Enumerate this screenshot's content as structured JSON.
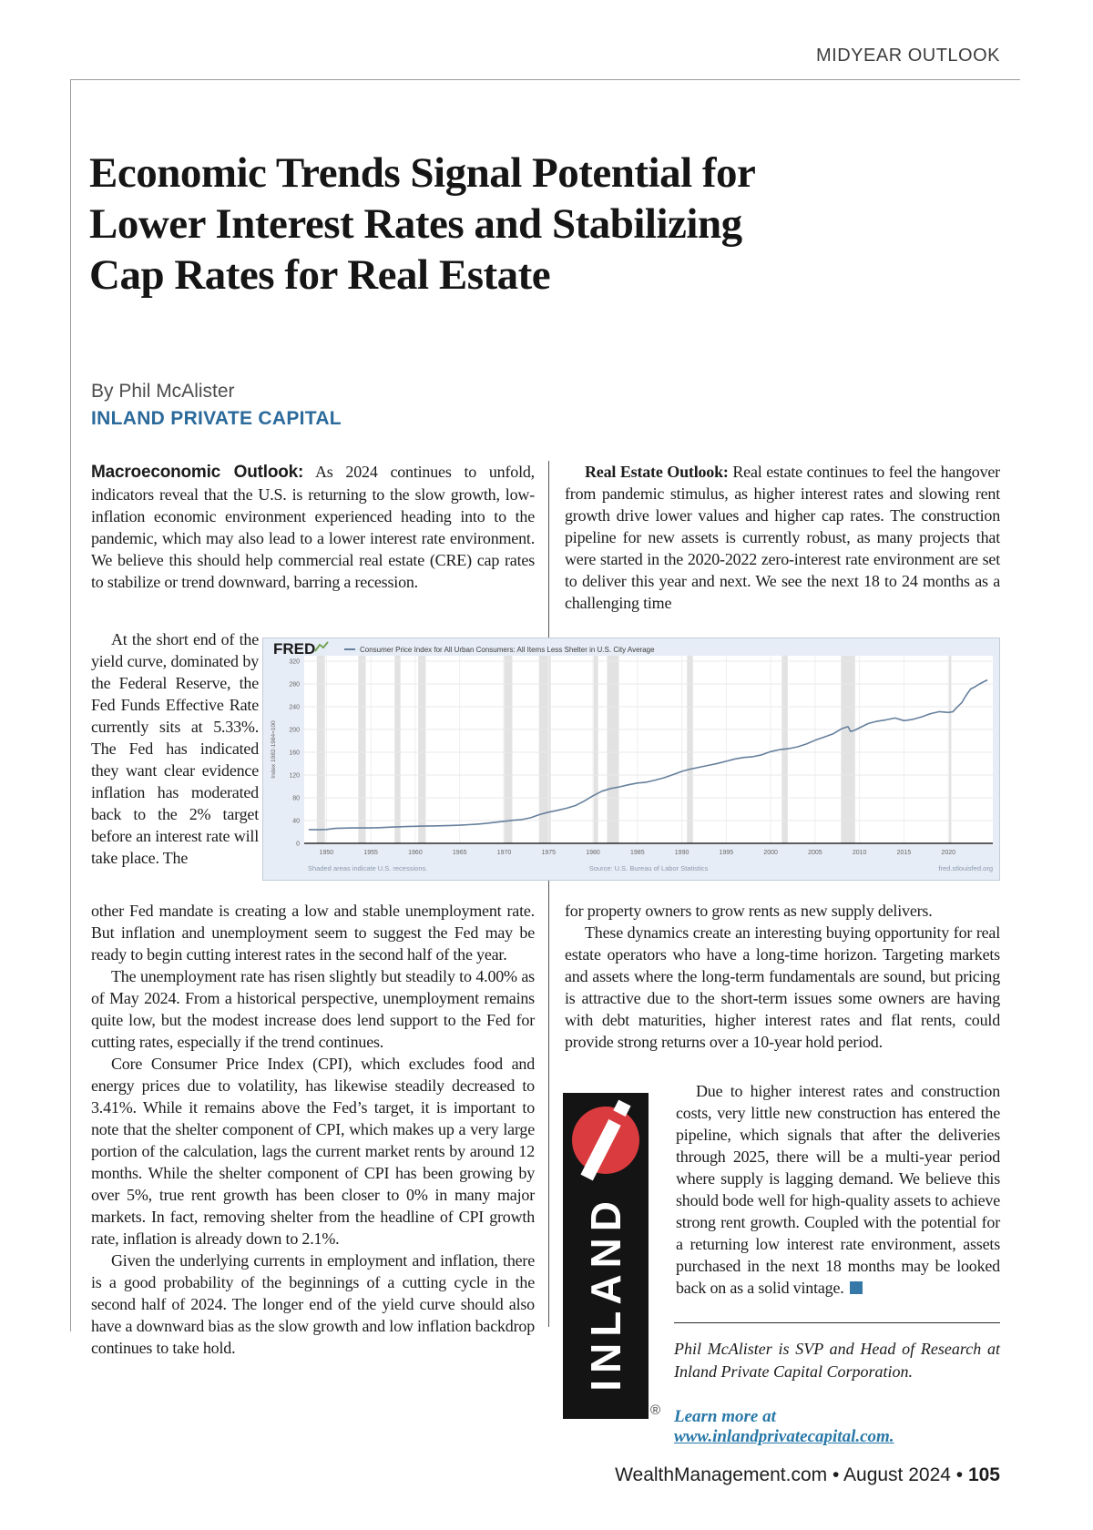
{
  "page": {
    "kicker": "MIDYEAR OUTLOOK",
    "title": "Economic Trends Signal Potential for\nLower Interest Rates and Stabilizing\nCap Rates for Real Estate",
    "byline": "By Phil McAlister",
    "brand": "INLAND PRIVATE CAPITAL",
    "footer": {
      "text": "WealthManagement.com • August 2024 • ",
      "page_number": "105"
    },
    "colors": {
      "brand_blue": "#2b6a9b",
      "link_blue": "#2878a8",
      "endmark": "#3679a8"
    }
  },
  "col1": {
    "p1_lead": "Macroeconomic Outlook:",
    "p1": " As 2024 continues to unfold, indicators reveal that the U.S. is returning to the slow growth, low-inflation economic environment experienced heading into to the pandemic, which may also lead to a lower interest rate environment. We believe this should help commercial real estate (CRE) cap rates to stabilize or trend downward, barring a recession.",
    "wrap": "At the short end of the yield curve, dominated by the Federal Reserve, the Fed Funds Effective Rate currently sits at 5.33%. The Fed has indicated they want clear evidence inflation has moderated back to the 2% target before an interest rate will take place. The",
    "p2": "other Fed mandate is creating a low and stable unemployment rate. But inflation and unemployment seem to suggest the Fed may be ready to begin cutting interest rates in the second half of the year.",
    "p3": "The unemployment rate has risen slightly but steadily to 4.00% as of May 2024. From a historical perspective, unemployment remains quite low, but the modest increase does lend support to the Fed for cutting rates, especially if the trend continues.",
    "p4": "Core Consumer Price Index (CPI), which excludes food and energy prices due to volatility, has likewise steadily decreased to 3.41%. While it remains above the Fed’s target, it is important to note that the shelter component of CPI, which makes up a very large portion of the calculation, lags the current market rents by around 12 months. While the shelter component of CPI has been growing by over 5%, true rent growth has been closer to 0% in many major markets. In fact, removing shelter from the headline of CPI growth rate, inflation is already down to 2.1%.",
    "p5": "Given the underlying currents in employment and inflation, there is a good probability of the beginnings of a cutting cycle in the second half of 2024. The longer end of the yield curve should also have a downward bias as the slow growth and low inflation backdrop continues to take hold."
  },
  "col2": {
    "p1_lead": "Real Estate Outlook:",
    "p1": " Real estate continues to feel the hangover from pandemic stimulus, as higher interest rates and slowing rent growth drive lower values and higher cap rates. The construction pipeline for new assets is currently robust, as many projects that were started in the 2020-2022 zero-interest rate environment are set to deliver this year and next. We see the next 18 to 24 months as a challenging time",
    "p2": "for property owners to grow rents as new supply delivers.",
    "p3": "These dynamics create an interesting buying opportunity for real estate operators who have a long-time horizon. Targeting markets and assets where the long-term fundamentals are sound, but pricing is attractive due to the short-term issues some owners are having with debt maturities, higher interest rates and flat rents, could provide strong returns over a 10-year hold period.",
    "p4": "Due to higher interest rates and construction costs, very little new construction has entered the pipeline, which signals that after the deliveries through 2025, there will be a multi-year period where supply is lagging demand. We believe this should bode well for high-quality assets to achieve strong rent growth. Coupled with the potential for a returning low interest rate environment, assets purchased in the next 18 months may be looked back on as a solid vintage.",
    "bio": "Phil McAlister is SVP and Head of Research at Inland Private Capital Corporation.",
    "learn_more_prefix": "Learn more at ",
    "learn_more_url": "www.inlandprivatecapital.com."
  },
  "logo": {
    "text": "INLAND",
    "registered": "®",
    "bg": "#141414",
    "red": "#da3b3e"
  },
  "chart_data": {
    "type": "line",
    "brand_label": "FRED",
    "legend": "Consumer Price Index for All Urban Consumers: All Items Less Shelter in U.S. City Average",
    "ylabel": "Index 1982-1984=100",
    "source_left": "Shaded areas indicate U.S. recessions.",
    "source_center": "Source: U.S. Bureau of Labor Statistics",
    "source_right": "fred.stlouisfed.org",
    "xlim": [
      1947.5,
      2025
    ],
    "ylim": [
      0,
      320
    ],
    "yticks": [
      0,
      40,
      80,
      120,
      160,
      200,
      240,
      280,
      320
    ],
    "xticks": [
      1950,
      1955,
      1960,
      1965,
      1970,
      1975,
      1980,
      1985,
      1990,
      1995,
      2000,
      2005,
      2010,
      2015,
      2020
    ],
    "recessions": [
      [
        1948.92,
        1949.83
      ],
      [
        1953.58,
        1954.42
      ],
      [
        1957.67,
        1958.33
      ],
      [
        1960.33,
        1961.17
      ],
      [
        1969.92,
        1970.92
      ],
      [
        1973.92,
        1975.25
      ],
      [
        1980.08,
        1980.58
      ],
      [
        1981.58,
        1982.92
      ],
      [
        1990.58,
        1991.25
      ],
      [
        2001.25,
        2001.92
      ],
      [
        2007.92,
        2009.5
      ],
      [
        2020.08,
        2020.33
      ]
    ],
    "series": [
      {
        "name": "Consumer Price Index for All Urban Consumers: All Items Less Shelter in U.S. City Average",
        "points": [
          [
            1948,
            24.2
          ],
          [
            1949,
            23.9
          ],
          [
            1950,
            24.3
          ],
          [
            1951,
            26.3
          ],
          [
            1952,
            26.8
          ],
          [
            1953,
            27.0
          ],
          [
            1954,
            27.1
          ],
          [
            1955,
            27.0
          ],
          [
            1956,
            27.5
          ],
          [
            1957,
            28.4
          ],
          [
            1958,
            29.0
          ],
          [
            1959,
            29.4
          ],
          [
            1960,
            29.9
          ],
          [
            1961,
            30.2
          ],
          [
            1962,
            30.5
          ],
          [
            1963,
            30.9
          ],
          [
            1964,
            31.3
          ],
          [
            1965,
            31.8
          ],
          [
            1966,
            32.8
          ],
          [
            1967,
            33.7
          ],
          [
            1968,
            35.1
          ],
          [
            1969,
            36.9
          ],
          [
            1970,
            38.8
          ],
          [
            1971,
            40.5
          ],
          [
            1972,
            41.8
          ],
          [
            1973,
            44.9
          ],
          [
            1974,
            50.5
          ],
          [
            1975,
            54.8
          ],
          [
            1976,
            57.9
          ],
          [
            1977,
            61.6
          ],
          [
            1978,
            66.2
          ],
          [
            1979,
            74.1
          ],
          [
            1980,
            83.6
          ],
          [
            1981,
            91.6
          ],
          [
            1982,
            96.3
          ],
          [
            1983,
            99.2
          ],
          [
            1984,
            102.9
          ],
          [
            1985,
            106.0
          ],
          [
            1986,
            107.3
          ],
          [
            1987,
            111.0
          ],
          [
            1988,
            115.2
          ],
          [
            1989,
            120.6
          ],
          [
            1990,
            126.4
          ],
          [
            1991,
            130.5
          ],
          [
            1992,
            133.8
          ],
          [
            1993,
            137.0
          ],
          [
            1994,
            140.4
          ],
          [
            1995,
            144.1
          ],
          [
            1996,
            148.3
          ],
          [
            1997,
            150.9
          ],
          [
            1998,
            152.2
          ],
          [
            1999,
            155.5
          ],
          [
            2000,
            161.1
          ],
          [
            2001,
            164.6
          ],
          [
            2002,
            166.3
          ],
          [
            2003,
            169.5
          ],
          [
            2004,
            174.4
          ],
          [
            2005,
            181.1
          ],
          [
            2006,
            186.6
          ],
          [
            2007,
            192.1
          ],
          [
            2008,
            201.4
          ],
          [
            2008.7,
            205.0
          ],
          [
            2009,
            196.5
          ],
          [
            2009.5,
            199.0
          ],
          [
            2010,
            203.0
          ],
          [
            2011,
            210.5
          ],
          [
            2012,
            214.5
          ],
          [
            2013,
            216.9
          ],
          [
            2014,
            220.1
          ],
          [
            2015,
            215.5
          ],
          [
            2016,
            217.8
          ],
          [
            2017,
            222.3
          ],
          [
            2018,
            227.8
          ],
          [
            2019,
            231.4
          ],
          [
            2020,
            230.0
          ],
          [
            2020.5,
            231.0
          ],
          [
            2021,
            239.5
          ],
          [
            2021.5,
            247.0
          ],
          [
            2022,
            260.0
          ],
          [
            2022.5,
            271.0
          ],
          [
            2023,
            275.0
          ],
          [
            2023.5,
            280.0
          ],
          [
            2024,
            284.0
          ],
          [
            2024.4,
            287.0
          ]
        ]
      }
    ],
    "colors": {
      "panel": "#e7edf6",
      "border": "#c3ccd9",
      "plot": "#ffffff",
      "band": "#e2e2e2",
      "grid": "#e8e8e8",
      "vgrid": "#efefef",
      "axis": "#2b2b2b",
      "line": "#66809d",
      "tick_text": "#666666",
      "footer_text": "#8b99ad",
      "legend_text": "#3d3d3d",
      "fred_text": "#1a1a1a",
      "fred_icon": "#74a455"
    }
  }
}
